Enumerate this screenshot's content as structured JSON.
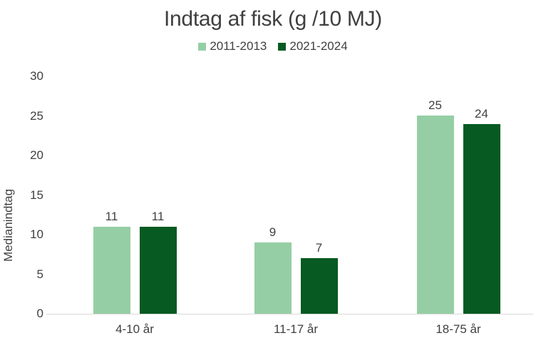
{
  "chart_data": {
    "type": "bar",
    "title": "Indtag af fisk (g /10 MJ)",
    "ylabel": "Medianindtag",
    "xlabel": "",
    "categories": [
      "4-10 år",
      "11-17 år",
      "18-75 år"
    ],
    "series": [
      {
        "name": "2011-2013",
        "color": "#95cea4",
        "values": [
          11,
          9,
          25
        ]
      },
      {
        "name": "2021-2024",
        "color": "#075a22",
        "values": [
          11,
          7,
          24
        ]
      }
    ],
    "ylim": [
      0,
      30
    ],
    "yticks": [
      0,
      5,
      10,
      15,
      20,
      25,
      30
    ],
    "grid": false,
    "legend_position": "top",
    "data_labels": [
      [
        "11",
        "9",
        "25"
      ],
      [
        "11",
        "7",
        "24"
      ]
    ]
  },
  "colors": {
    "title_text": "#3f3f3f",
    "label_text": "#404040",
    "axis_line": "#d9d9d9",
    "background": "#ffffff"
  }
}
